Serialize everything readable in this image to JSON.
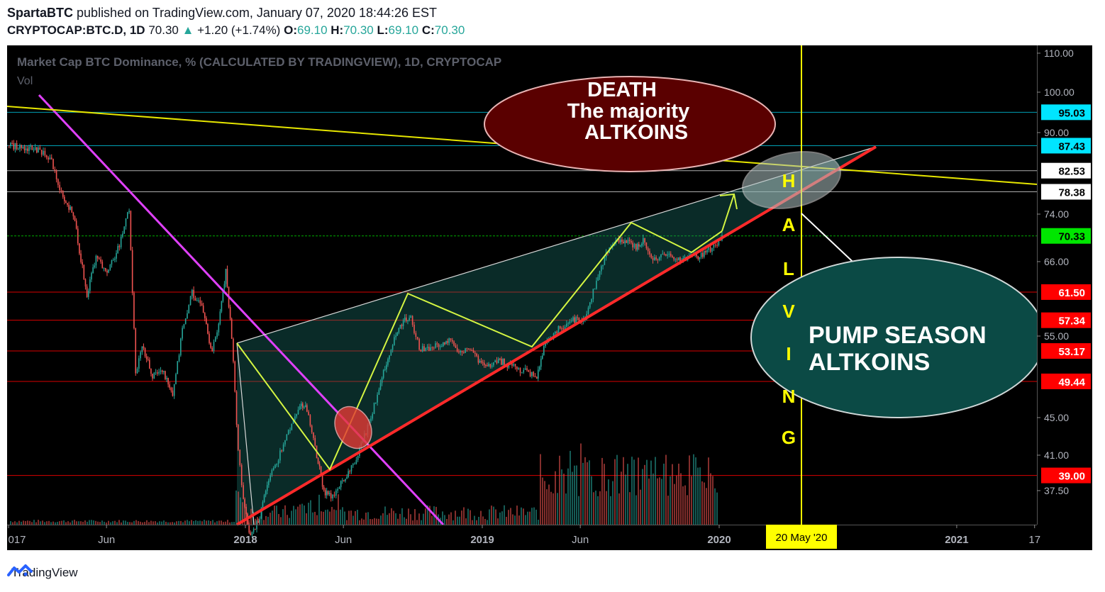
{
  "header": {
    "author": "SpartaBTC",
    "published_text": "published on TradingView.com, January 07, 2020 18:44:26 EST",
    "symbol": "CRYPTOCAP:BTC.D, 1D",
    "last": "70.30",
    "change": "+1.20 (+1.74%)",
    "o_label": "O:",
    "o": "69.10",
    "h_label": "H:",
    "h": "70.30",
    "l_label": "L:",
    "l": "69.10",
    "c_label": "C:",
    "c": "70.30"
  },
  "overlay": {
    "title": "Market Cap BTC Dominance, % (CALCULATED BY TRADINGVIEW), 1D, CRYPTOCAP",
    "vol": "Vol"
  },
  "footer": {
    "brand": "TradingView"
  },
  "colors": {
    "background": "#000000",
    "up": "#26a69a",
    "down": "#ef5350",
    "trend_down": "#e040fb",
    "wedge_support": "#ff2a2a",
    "wedge_resistance": "#d8d8d8",
    "halving_line": "#ffff00",
    "zigzag": "#d4f542",
    "aqua_level": "#00bcd4",
    "red_level": "#ff0000"
  },
  "chart_data": {
    "type": "candlestick",
    "y_ticks": [
      "110.00",
      "100.00",
      "90.00",
      "74.00",
      "66.00",
      "55.00",
      "45.00",
      "41.00",
      "37.50"
    ],
    "x_ticks": [
      {
        "label": "017",
        "date": "2017-01"
      },
      {
        "label": "Jun",
        "date": "2017-06"
      },
      {
        "label": "2018",
        "date": "2018-01"
      },
      {
        "label": "Jun",
        "date": "2018-06"
      },
      {
        "label": "2019",
        "date": "2019-01"
      },
      {
        "label": "Jun",
        "date": "2019-06"
      },
      {
        "label": "2020",
        "date": "2020-01"
      },
      {
        "label": "2021",
        "date": "2021-01"
      },
      {
        "label": "17",
        "date": "2021-05"
      }
    ],
    "price_levels": [
      {
        "value": 95.03,
        "label": "95.03",
        "bg": "#00e5ff",
        "fg": "#000000",
        "line": "#00bcd4"
      },
      {
        "value": 87.43,
        "label": "87.43",
        "bg": "#00e5ff",
        "fg": "#000000",
        "line": "#00bcd4"
      },
      {
        "value": 82.53,
        "label": "82.53",
        "bg": "#ffffff",
        "fg": "#000000",
        "line": "#cccccc"
      },
      {
        "value": 78.38,
        "label": "78.38",
        "bg": "#ffffff",
        "fg": "#000000",
        "line": "#cccccc"
      },
      {
        "value": 70.33,
        "label": "70.33",
        "bg": "#00e600",
        "fg": "#000000",
        "line": "#00cc00"
      },
      {
        "value": 61.5,
        "label": "61.50",
        "bg": "#ff0000",
        "fg": "#ffffff",
        "line": "#ff0000"
      },
      {
        "value": 57.34,
        "label": "57.34",
        "bg": "#ff0000",
        "fg": "#ffffff",
        "line": "#ff0000"
      },
      {
        "value": 53.17,
        "label": "53.17",
        "bg": "#ff0000",
        "fg": "#ffffff",
        "line": "#ff0000"
      },
      {
        "value": 49.44,
        "label": "49.44",
        "bg": "#ff0000",
        "fg": "#ffffff",
        "line": "#ff0000"
      },
      {
        "value": 39.0,
        "label": "39.00",
        "bg": "#ff0000",
        "fg": "#ffffff",
        "line": "#ff0000"
      }
    ],
    "halving_date_label": "20 May '20",
    "halving_letters": [
      "H",
      "A",
      "L",
      "V",
      "I",
      "N",
      "G"
    ],
    "price_path": [
      [
        "2017-01-01",
        87.5
      ],
      [
        "2017-02-15",
        86.6
      ],
      [
        "2017-03-05",
        85.2
      ],
      [
        "2017-03-25",
        77.0
      ],
      [
        "2017-04-10",
        74.0
      ],
      [
        "2017-05-01",
        61.0
      ],
      [
        "2017-05-15",
        67.0
      ],
      [
        "2017-06-01",
        64.0
      ],
      [
        "2017-06-20",
        69.0
      ],
      [
        "2017-07-05",
        75.0
      ],
      [
        "2017-07-15",
        50.5
      ],
      [
        "2017-07-25",
        54.0
      ],
      [
        "2017-08-10",
        50.0
      ],
      [
        "2017-08-25",
        51.0
      ],
      [
        "2017-09-10",
        47.5
      ],
      [
        "2017-09-25",
        56.0
      ],
      [
        "2017-10-10",
        61.5
      ],
      [
        "2017-10-25",
        59.0
      ],
      [
        "2017-11-10",
        53.0
      ],
      [
        "2017-11-20",
        57.0
      ],
      [
        "2017-12-01",
        64.5
      ],
      [
        "2017-12-10",
        55.0
      ],
      [
        "2017-12-20",
        41.5
      ],
      [
        "2017-12-28",
        36.5
      ],
      [
        "2018-01-08",
        33.0
      ],
      [
        "2018-01-20",
        34.5
      ],
      [
        "2018-02-05",
        38.5
      ],
      [
        "2018-02-20",
        40.8
      ],
      [
        "2018-03-10",
        44.0
      ],
      [
        "2018-03-25",
        46.5
      ],
      [
        "2018-04-05",
        46.0
      ],
      [
        "2018-04-20",
        41.0
      ],
      [
        "2018-05-01",
        37.5
      ],
      [
        "2018-05-12",
        36.8
      ],
      [
        "2018-05-25",
        38.0
      ],
      [
        "2018-06-10",
        39.5
      ],
      [
        "2018-06-25",
        41.5
      ],
      [
        "2018-07-10",
        44.5
      ],
      [
        "2018-07-25",
        48.5
      ],
      [
        "2018-08-10",
        53.0
      ],
      [
        "2018-08-20",
        55.5
      ],
      [
        "2018-09-05",
        57.5
      ],
      [
        "2018-09-12",
        57.8
      ],
      [
        "2018-09-25",
        53.5
      ],
      [
        "2018-10-10",
        53.5
      ],
      [
        "2018-10-25",
        54.0
      ],
      [
        "2018-11-10",
        54.5
      ],
      [
        "2018-11-25",
        53.0
      ],
      [
        "2018-12-10",
        53.5
      ],
      [
        "2018-12-25",
        52.0
      ],
      [
        "2019-01-10",
        51.5
      ],
      [
        "2019-01-25",
        52.0
      ],
      [
        "2019-02-10",
        51.5
      ],
      [
        "2019-02-25",
        51.0
      ],
      [
        "2019-03-10",
        50.6
      ],
      [
        "2019-03-25",
        50.0
      ],
      [
        "2019-04-05",
        53.5
      ],
      [
        "2019-04-20",
        55.5
      ],
      [
        "2019-05-05",
        56.5
      ],
      [
        "2019-05-20",
        57.5
      ],
      [
        "2019-06-05",
        57.0
      ],
      [
        "2019-06-15",
        59.5
      ],
      [
        "2019-06-25",
        63.5
      ],
      [
        "2019-07-05",
        66.0
      ],
      [
        "2019-07-20",
        69.0
      ],
      [
        "2019-08-01",
        69.5
      ],
      [
        "2019-08-15",
        69.0
      ],
      [
        "2019-08-25",
        68.5
      ],
      [
        "2019-09-05",
        69.5
      ],
      [
        "2019-09-15",
        67.0
      ],
      [
        "2019-09-25",
        66.5
      ],
      [
        "2019-10-05",
        67.5
      ],
      [
        "2019-10-20",
        66.5
      ],
      [
        "2019-11-01",
        66.5
      ],
      [
        "2019-11-15",
        67.0
      ],
      [
        "2019-12-01",
        67.0
      ],
      [
        "2019-12-15",
        68.0
      ],
      [
        "2019-12-28",
        69.0
      ],
      [
        "2020-01-07",
        70.3
      ]
    ]
  }
}
